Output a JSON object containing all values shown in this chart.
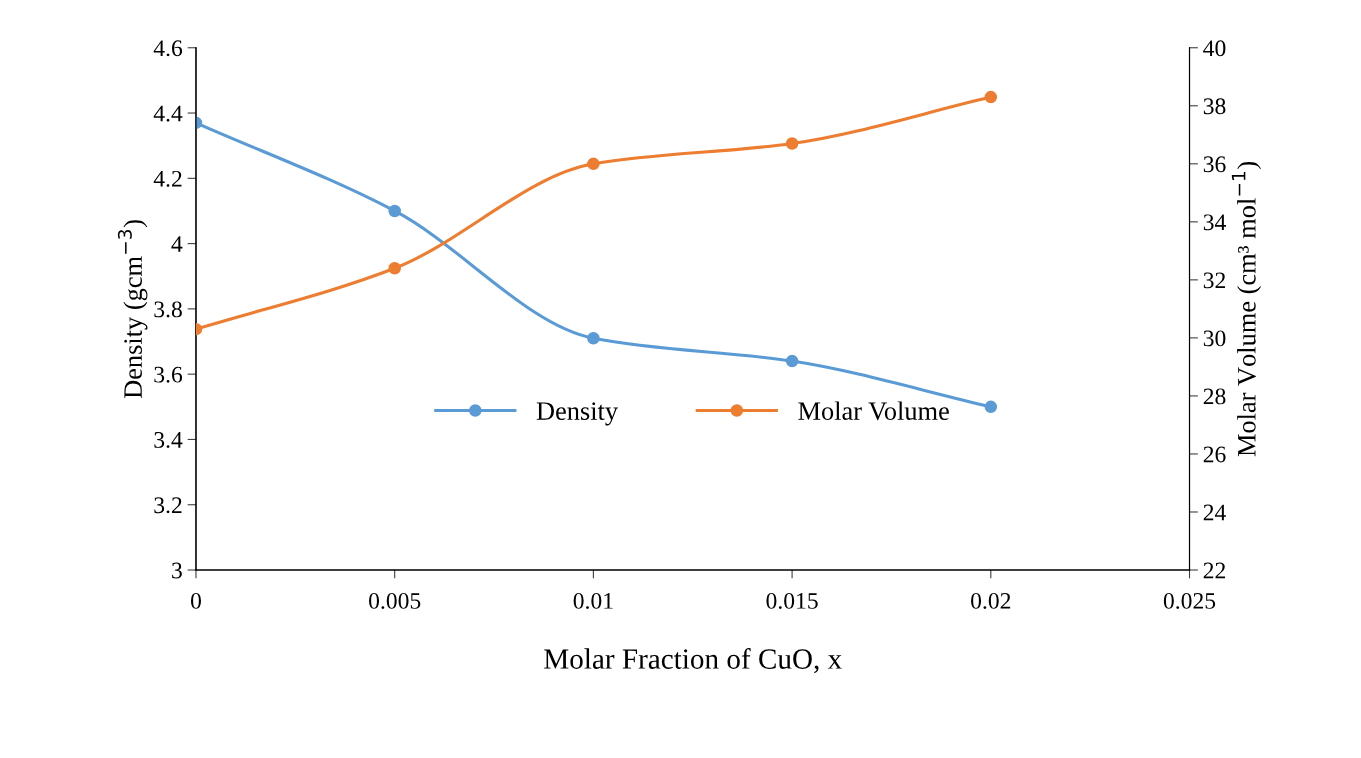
{
  "chart_data": {
    "type": "line",
    "xlabel": "Molar Fraction of CuO, x",
    "ylabel": "Density (gcm$^{−3}$)",
    "y2label": "Molar Volume (cm³ mol$^{−1}$)",
    "x": [
      0,
      0.005,
      0.01,
      0.015,
      0.02
    ],
    "series": [
      {
        "name": "Density",
        "color": "#5b9bd5",
        "values": [
          4.37,
          4.1,
          3.71,
          3.64,
          3.5
        ]
      },
      {
        "name": "Molar Volume",
        "color": "#ed7d31",
        "values": [
          30.3,
          32.4,
          36.0,
          36.7,
          38.3
        ],
        "axis": "y2"
      }
    ],
    "xlim": [
      0,
      0.025
    ],
    "xticks": [
      0,
      0.005,
      0.01,
      0.015,
      0.02,
      0.025
    ],
    "ylim": [
      3,
      4.6
    ],
    "yticks": [
      3,
      3.2,
      3.4,
      3.6,
      3.8,
      4,
      4.2,
      4.4,
      4.6
    ],
    "y2lim": [
      22,
      40
    ],
    "y2ticks": [
      22,
      24,
      26,
      28,
      30,
      32,
      34,
      36,
      38,
      40
    ],
    "grid": false,
    "legend": "center",
    "marker": "circle",
    "line_style": "solid"
  }
}
